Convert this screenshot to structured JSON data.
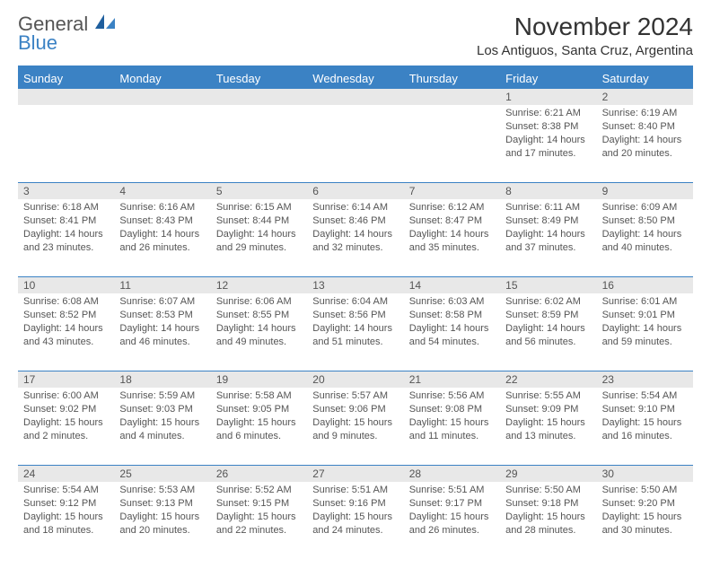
{
  "brand": {
    "part1": "General",
    "part2": "Blue"
  },
  "title": "November 2024",
  "location": "Los Antiguos, Santa Cruz, Argentina",
  "colors": {
    "accent": "#3b82c4",
    "header_text": "#ffffff",
    "body_text": "#555555",
    "stripe_bg": "#e8e8e8",
    "page_bg": "#ffffff"
  },
  "day_headers": [
    "Sunday",
    "Monday",
    "Tuesday",
    "Wednesday",
    "Thursday",
    "Friday",
    "Saturday"
  ],
  "weeks": [
    [
      {
        "n": "",
        "sr": "",
        "ss": "",
        "dl": ""
      },
      {
        "n": "",
        "sr": "",
        "ss": "",
        "dl": ""
      },
      {
        "n": "",
        "sr": "",
        "ss": "",
        "dl": ""
      },
      {
        "n": "",
        "sr": "",
        "ss": "",
        "dl": ""
      },
      {
        "n": "",
        "sr": "",
        "ss": "",
        "dl": ""
      },
      {
        "n": "1",
        "sr": "Sunrise: 6:21 AM",
        "ss": "Sunset: 8:38 PM",
        "dl": "Daylight: 14 hours and 17 minutes."
      },
      {
        "n": "2",
        "sr": "Sunrise: 6:19 AM",
        "ss": "Sunset: 8:40 PM",
        "dl": "Daylight: 14 hours and 20 minutes."
      }
    ],
    [
      {
        "n": "3",
        "sr": "Sunrise: 6:18 AM",
        "ss": "Sunset: 8:41 PM",
        "dl": "Daylight: 14 hours and 23 minutes."
      },
      {
        "n": "4",
        "sr": "Sunrise: 6:16 AM",
        "ss": "Sunset: 8:43 PM",
        "dl": "Daylight: 14 hours and 26 minutes."
      },
      {
        "n": "5",
        "sr": "Sunrise: 6:15 AM",
        "ss": "Sunset: 8:44 PM",
        "dl": "Daylight: 14 hours and 29 minutes."
      },
      {
        "n": "6",
        "sr": "Sunrise: 6:14 AM",
        "ss": "Sunset: 8:46 PM",
        "dl": "Daylight: 14 hours and 32 minutes."
      },
      {
        "n": "7",
        "sr": "Sunrise: 6:12 AM",
        "ss": "Sunset: 8:47 PM",
        "dl": "Daylight: 14 hours and 35 minutes."
      },
      {
        "n": "8",
        "sr": "Sunrise: 6:11 AM",
        "ss": "Sunset: 8:49 PM",
        "dl": "Daylight: 14 hours and 37 minutes."
      },
      {
        "n": "9",
        "sr": "Sunrise: 6:09 AM",
        "ss": "Sunset: 8:50 PM",
        "dl": "Daylight: 14 hours and 40 minutes."
      }
    ],
    [
      {
        "n": "10",
        "sr": "Sunrise: 6:08 AM",
        "ss": "Sunset: 8:52 PM",
        "dl": "Daylight: 14 hours and 43 minutes."
      },
      {
        "n": "11",
        "sr": "Sunrise: 6:07 AM",
        "ss": "Sunset: 8:53 PM",
        "dl": "Daylight: 14 hours and 46 minutes."
      },
      {
        "n": "12",
        "sr": "Sunrise: 6:06 AM",
        "ss": "Sunset: 8:55 PM",
        "dl": "Daylight: 14 hours and 49 minutes."
      },
      {
        "n": "13",
        "sr": "Sunrise: 6:04 AM",
        "ss": "Sunset: 8:56 PM",
        "dl": "Daylight: 14 hours and 51 minutes."
      },
      {
        "n": "14",
        "sr": "Sunrise: 6:03 AM",
        "ss": "Sunset: 8:58 PM",
        "dl": "Daylight: 14 hours and 54 minutes."
      },
      {
        "n": "15",
        "sr": "Sunrise: 6:02 AM",
        "ss": "Sunset: 8:59 PM",
        "dl": "Daylight: 14 hours and 56 minutes."
      },
      {
        "n": "16",
        "sr": "Sunrise: 6:01 AM",
        "ss": "Sunset: 9:01 PM",
        "dl": "Daylight: 14 hours and 59 minutes."
      }
    ],
    [
      {
        "n": "17",
        "sr": "Sunrise: 6:00 AM",
        "ss": "Sunset: 9:02 PM",
        "dl": "Daylight: 15 hours and 2 minutes."
      },
      {
        "n": "18",
        "sr": "Sunrise: 5:59 AM",
        "ss": "Sunset: 9:03 PM",
        "dl": "Daylight: 15 hours and 4 minutes."
      },
      {
        "n": "19",
        "sr": "Sunrise: 5:58 AM",
        "ss": "Sunset: 9:05 PM",
        "dl": "Daylight: 15 hours and 6 minutes."
      },
      {
        "n": "20",
        "sr": "Sunrise: 5:57 AM",
        "ss": "Sunset: 9:06 PM",
        "dl": "Daylight: 15 hours and 9 minutes."
      },
      {
        "n": "21",
        "sr": "Sunrise: 5:56 AM",
        "ss": "Sunset: 9:08 PM",
        "dl": "Daylight: 15 hours and 11 minutes."
      },
      {
        "n": "22",
        "sr": "Sunrise: 5:55 AM",
        "ss": "Sunset: 9:09 PM",
        "dl": "Daylight: 15 hours and 13 minutes."
      },
      {
        "n": "23",
        "sr": "Sunrise: 5:54 AM",
        "ss": "Sunset: 9:10 PM",
        "dl": "Daylight: 15 hours and 16 minutes."
      }
    ],
    [
      {
        "n": "24",
        "sr": "Sunrise: 5:54 AM",
        "ss": "Sunset: 9:12 PM",
        "dl": "Daylight: 15 hours and 18 minutes."
      },
      {
        "n": "25",
        "sr": "Sunrise: 5:53 AM",
        "ss": "Sunset: 9:13 PM",
        "dl": "Daylight: 15 hours and 20 minutes."
      },
      {
        "n": "26",
        "sr": "Sunrise: 5:52 AM",
        "ss": "Sunset: 9:15 PM",
        "dl": "Daylight: 15 hours and 22 minutes."
      },
      {
        "n": "27",
        "sr": "Sunrise: 5:51 AM",
        "ss": "Sunset: 9:16 PM",
        "dl": "Daylight: 15 hours and 24 minutes."
      },
      {
        "n": "28",
        "sr": "Sunrise: 5:51 AM",
        "ss": "Sunset: 9:17 PM",
        "dl": "Daylight: 15 hours and 26 minutes."
      },
      {
        "n": "29",
        "sr": "Sunrise: 5:50 AM",
        "ss": "Sunset: 9:18 PM",
        "dl": "Daylight: 15 hours and 28 minutes."
      },
      {
        "n": "30",
        "sr": "Sunrise: 5:50 AM",
        "ss": "Sunset: 9:20 PM",
        "dl": "Daylight: 15 hours and 30 minutes."
      }
    ]
  ]
}
